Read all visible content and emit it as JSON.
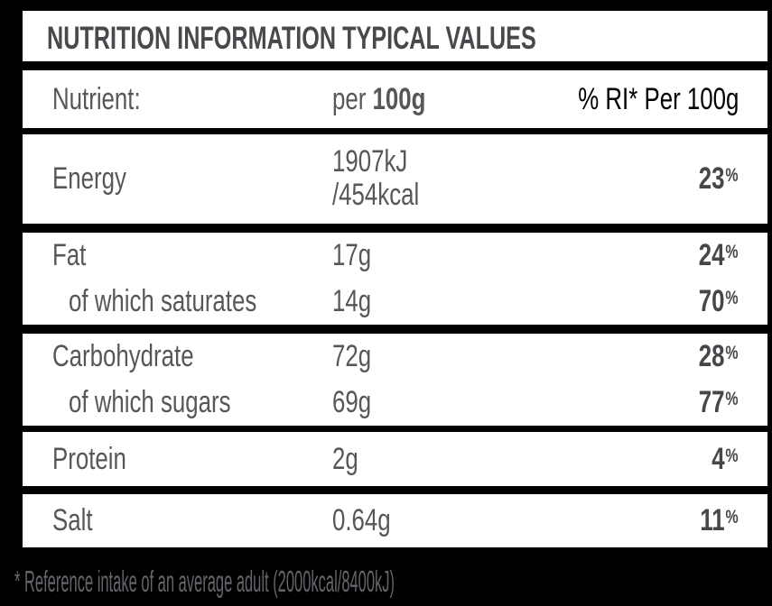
{
  "label": {
    "title": "NUTRITION INFORMATION TYPICAL VALUES",
    "header": {
      "nutrient": "Nutrient:",
      "per_label": "per",
      "per_unit": "100g",
      "ri": "% RI* Per 100g"
    },
    "rows": [
      {
        "name": "Energy",
        "value": "1907kJ",
        "value2": "/454kcal",
        "ri": "23"
      },
      {
        "name": "Fat",
        "value": "17g",
        "ri": "24"
      },
      {
        "name": "of which saturates",
        "value": "14g",
        "ri": "70"
      },
      {
        "name": "Carbohydrate",
        "value": "72g",
        "ri": "28"
      },
      {
        "name": "of which sugars",
        "value": "69g",
        "ri": "77"
      },
      {
        "name": "Protein",
        "value": "2g",
        "ri": "4"
      },
      {
        "name": "Salt",
        "value": "0.64g",
        "ri": "11"
      }
    ],
    "percent_sign": "%",
    "footnote": "* Reference intake of an average adult (2000kcal/8400kJ)",
    "colors": {
      "background": "#000000",
      "panel": "#ffffff",
      "title_text": "#48494c",
      "body_text": "#56575b",
      "percent_text": "#46474b",
      "footnote_text": "#64656a"
    }
  }
}
